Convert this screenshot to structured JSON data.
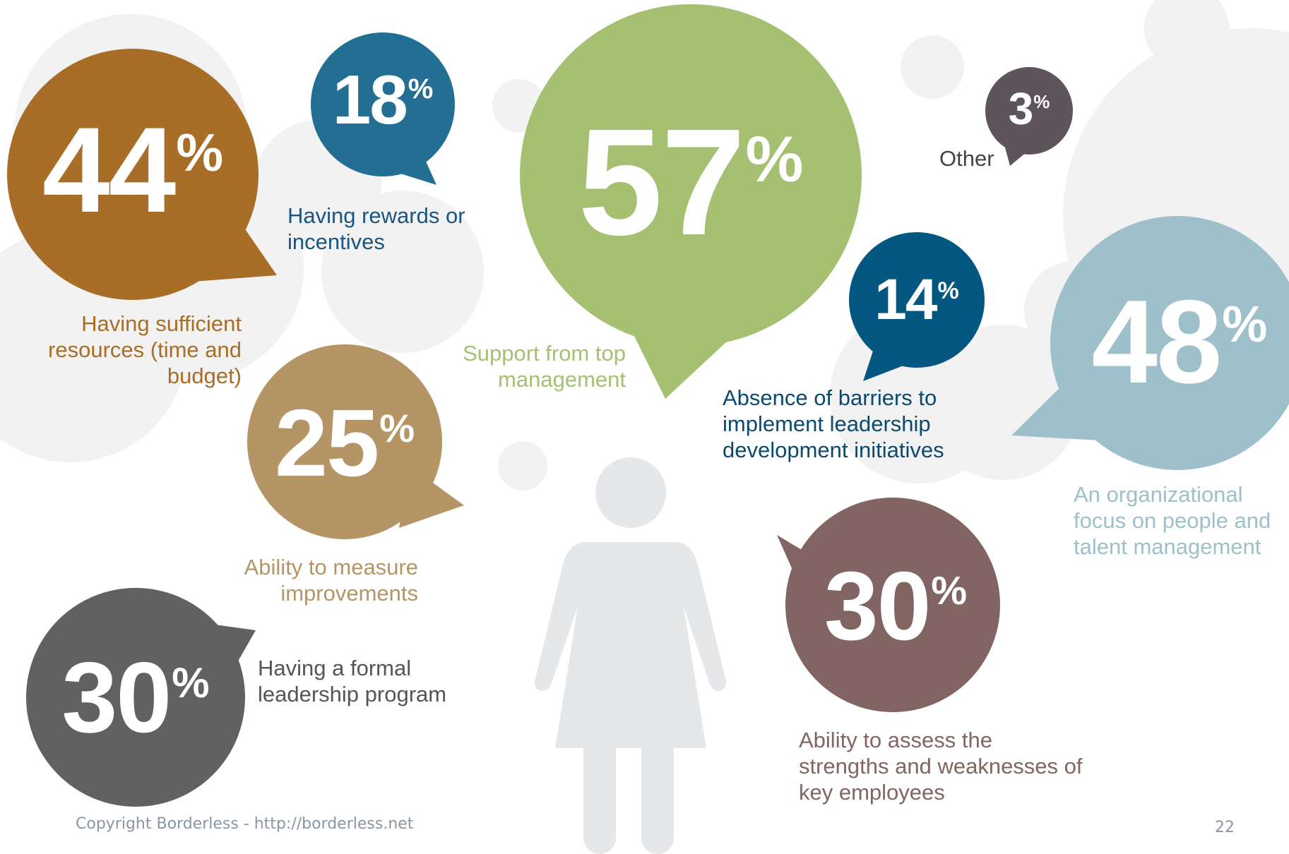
{
  "chart_data": {
    "type": "bubble-infographic",
    "items": [
      {
        "id": "resources",
        "value": 44,
        "unit": "%",
        "label": "Having sufficient\nresources (time and\nbudget)",
        "color": "#a86e28"
      },
      {
        "id": "rewards",
        "value": 18,
        "unit": "%",
        "label": "Having rewards or\nincentives",
        "color": "#236f94"
      },
      {
        "id": "top-management",
        "value": 57,
        "unit": "%",
        "label": "Support from top\nmanagement",
        "color": "#a6c072"
      },
      {
        "id": "other",
        "value": 3,
        "unit": "%",
        "label": "Other",
        "color": "#5e545b"
      },
      {
        "id": "barriers",
        "value": 14,
        "unit": "%",
        "label": "Absence of barriers to\nimplement leadership\ndevelopment initiatives",
        "color": "#045780"
      },
      {
        "id": "people-focus",
        "value": 48,
        "unit": "%",
        "label": "An organizational\nfocus on people and\ntalent management",
        "color": "#9dc0cb"
      },
      {
        "id": "measure",
        "value": 25,
        "unit": "%",
        "label": "Ability to measure\nimprovements",
        "color": "#b59565"
      },
      {
        "id": "assess",
        "value": 30,
        "unit": "%",
        "label": "Ability to assess the\nstrengths and weaknesses of\nkey employees",
        "color": "#826562"
      },
      {
        "id": "formal-program",
        "value": 30,
        "unit": "%",
        "label": "Having a formal\nleadership program",
        "color": "#616161"
      }
    ]
  },
  "footer": {
    "copyright": "Copyright Borderless - http://borderless.net",
    "page_number": "22"
  },
  "colors": {
    "background_circles": "#f2f2f2",
    "figure": "#e6e7e8",
    "footer_text": "#8a96a3",
    "rewards_label": "#1c5580",
    "barriers_label": "#0b4a6e",
    "other_label": "#444444",
    "formal_label": "#555555"
  }
}
